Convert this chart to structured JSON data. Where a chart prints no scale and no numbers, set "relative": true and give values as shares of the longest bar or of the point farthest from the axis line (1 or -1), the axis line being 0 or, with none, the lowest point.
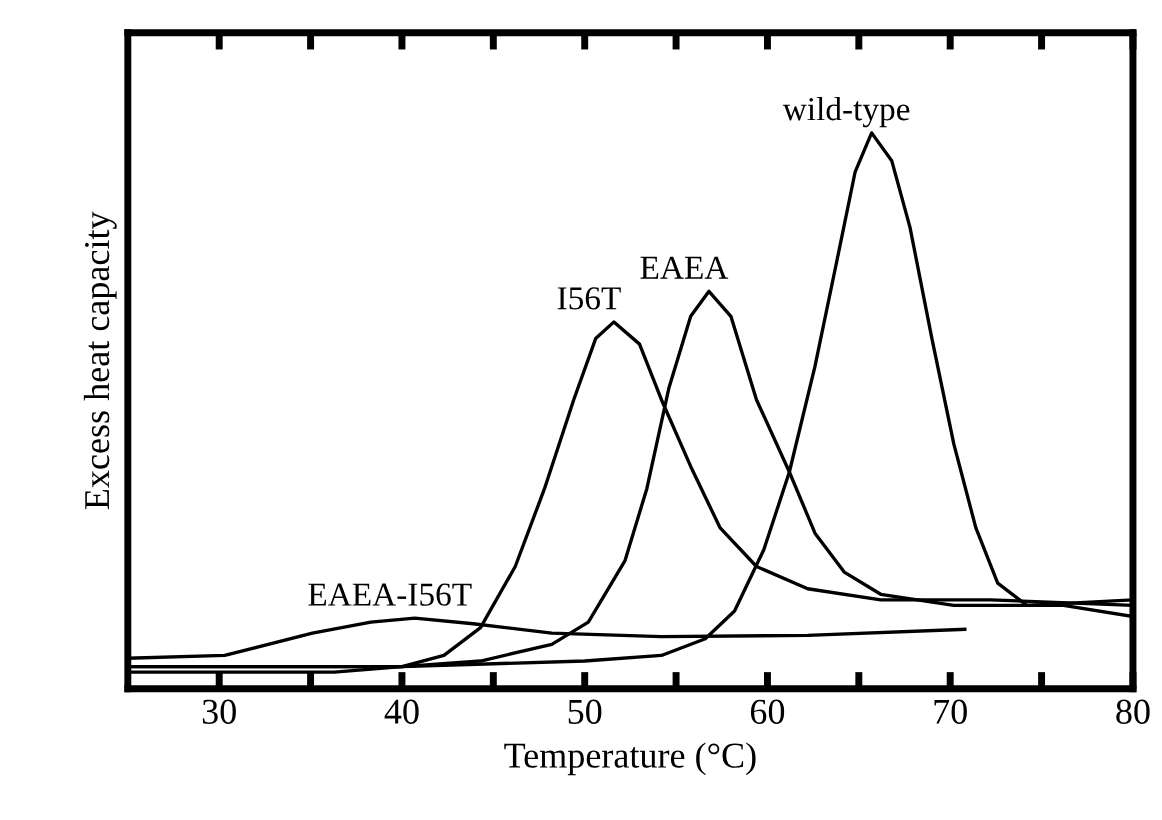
{
  "chart_data": {
    "type": "line",
    "xlabel": "Temperature (°C)",
    "ylabel": "Excess heat capacity",
    "relative": true,
    "xlim": [
      25,
      80
    ],
    "xticks": [
      30,
      {
        "value": 35,
        "label": null
      },
      40,
      {
        "value": 45,
        "label": null
      },
      50,
      {
        "value": 55,
        "label": null
      },
      60,
      {
        "value": 65,
        "label": null
      },
      70,
      {
        "value": 75,
        "label": null
      },
      80
    ],
    "grid": false,
    "marker": "none",
    "line_style": "solid",
    "series": [
      {
        "name": "EAEA-I56T",
        "color": "#000000",
        "x": [
          25,
          30.3,
          35.1,
          38.3,
          40.7,
          43.9,
          48.2,
          54.2,
          62.2,
          70.8
        ],
        "values": [
          0.055,
          0.06,
          0.1,
          0.12,
          0.127,
          0.117,
          0.1,
          0.094,
          0.096,
          0.107
        ]
      },
      {
        "name": "I56T",
        "color": "#000000",
        "x": [
          25,
          36.3,
          40,
          42.3,
          44.3,
          46.2,
          47.8,
          49.4,
          50.6,
          51.6,
          53.0,
          54.2,
          55.8,
          57.4,
          59.4,
          62.2,
          66.2,
          72.2,
          80
        ],
        "values": [
          0.03,
          0.03,
          0.04,
          0.06,
          0.11,
          0.22,
          0.36,
          0.52,
          0.63,
          0.66,
          0.62,
          0.52,
          0.4,
          0.29,
          0.22,
          0.18,
          0.16,
          0.16,
          0.15
        ]
      },
      {
        "name": "EAEA",
        "color": "#000000",
        "x": [
          25,
          40,
          44.3,
          48.2,
          50.2,
          52.2,
          53.4,
          54.6,
          55.8,
          56.8,
          58.0,
          59.4,
          61.2,
          62.6,
          64.2,
          66.2,
          70.2,
          74.2,
          80
        ],
        "values": [
          0.04,
          0.04,
          0.05,
          0.08,
          0.12,
          0.23,
          0.36,
          0.54,
          0.67,
          0.715,
          0.67,
          0.52,
          0.39,
          0.28,
          0.21,
          0.17,
          0.15,
          0.15,
          0.16
        ]
      },
      {
        "name": "wild-type",
        "color": "#000000",
        "x": [
          25,
          40,
          50,
          54.2,
          56.6,
          58.2,
          59.8,
          61.2,
          62.6,
          63.8,
          64.8,
          65.7,
          66.8,
          67.8,
          69.0,
          70.2,
          71.4,
          72.6,
          74.2,
          76.2,
          80
        ],
        "values": [
          0.04,
          0.04,
          0.05,
          0.06,
          0.09,
          0.14,
          0.25,
          0.39,
          0.58,
          0.77,
          0.93,
          1.0,
          0.95,
          0.83,
          0.63,
          0.44,
          0.29,
          0.19,
          0.15,
          0.15,
          0.13
        ]
      }
    ]
  }
}
